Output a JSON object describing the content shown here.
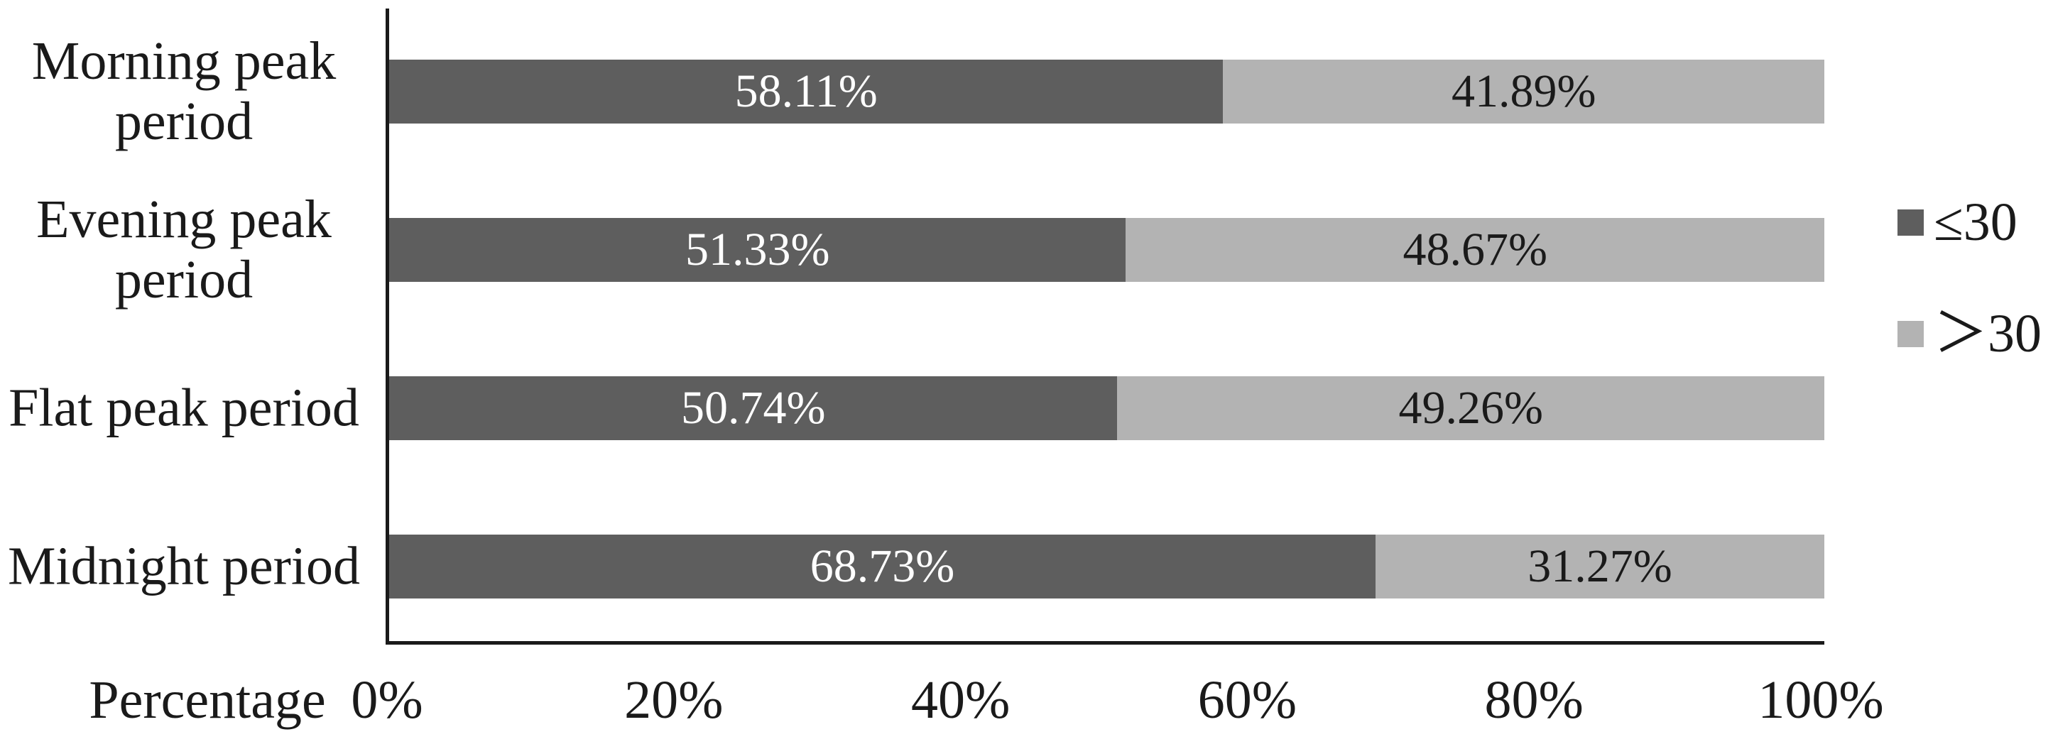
{
  "chart_data": {
    "type": "bar",
    "variant": "horizontal-stacked",
    "title": "",
    "xlabel": "Percentage",
    "ylabel": "",
    "categories": [
      "Morning peak period",
      "Evening peak period",
      "Flat peak period",
      "Midnight period"
    ],
    "categories_lines": [
      [
        "Morning peak",
        "period"
      ],
      [
        "Evening peak",
        "period"
      ],
      [
        "Flat peak period"
      ],
      [
        "Midnight period"
      ]
    ],
    "series": [
      {
        "name": "≤30",
        "color": "#5e5e5e",
        "label_color": "#ffffff",
        "values": [
          58.11,
          51.33,
          50.74,
          68.73
        ],
        "labels": [
          "58.11%",
          "51.33%",
          "50.74%",
          "68.73%"
        ]
      },
      {
        "name": "＞30",
        "color": "#b3b3b3",
        "label_color": "#1a1a1a",
        "values": [
          41.89,
          48.67,
          49.26,
          31.27
        ],
        "labels": [
          "41.89%",
          "48.67%",
          "49.26%",
          "31.27%"
        ]
      }
    ],
    "x_ticks": [
      "0%",
      "20%",
      "40%",
      "60%",
      "80%",
      "100%"
    ],
    "xlim": [
      0,
      100
    ],
    "grid": false,
    "legend_position": "right",
    "axis_color": "#1a1a1a",
    "background_color": "#ffffff"
  }
}
